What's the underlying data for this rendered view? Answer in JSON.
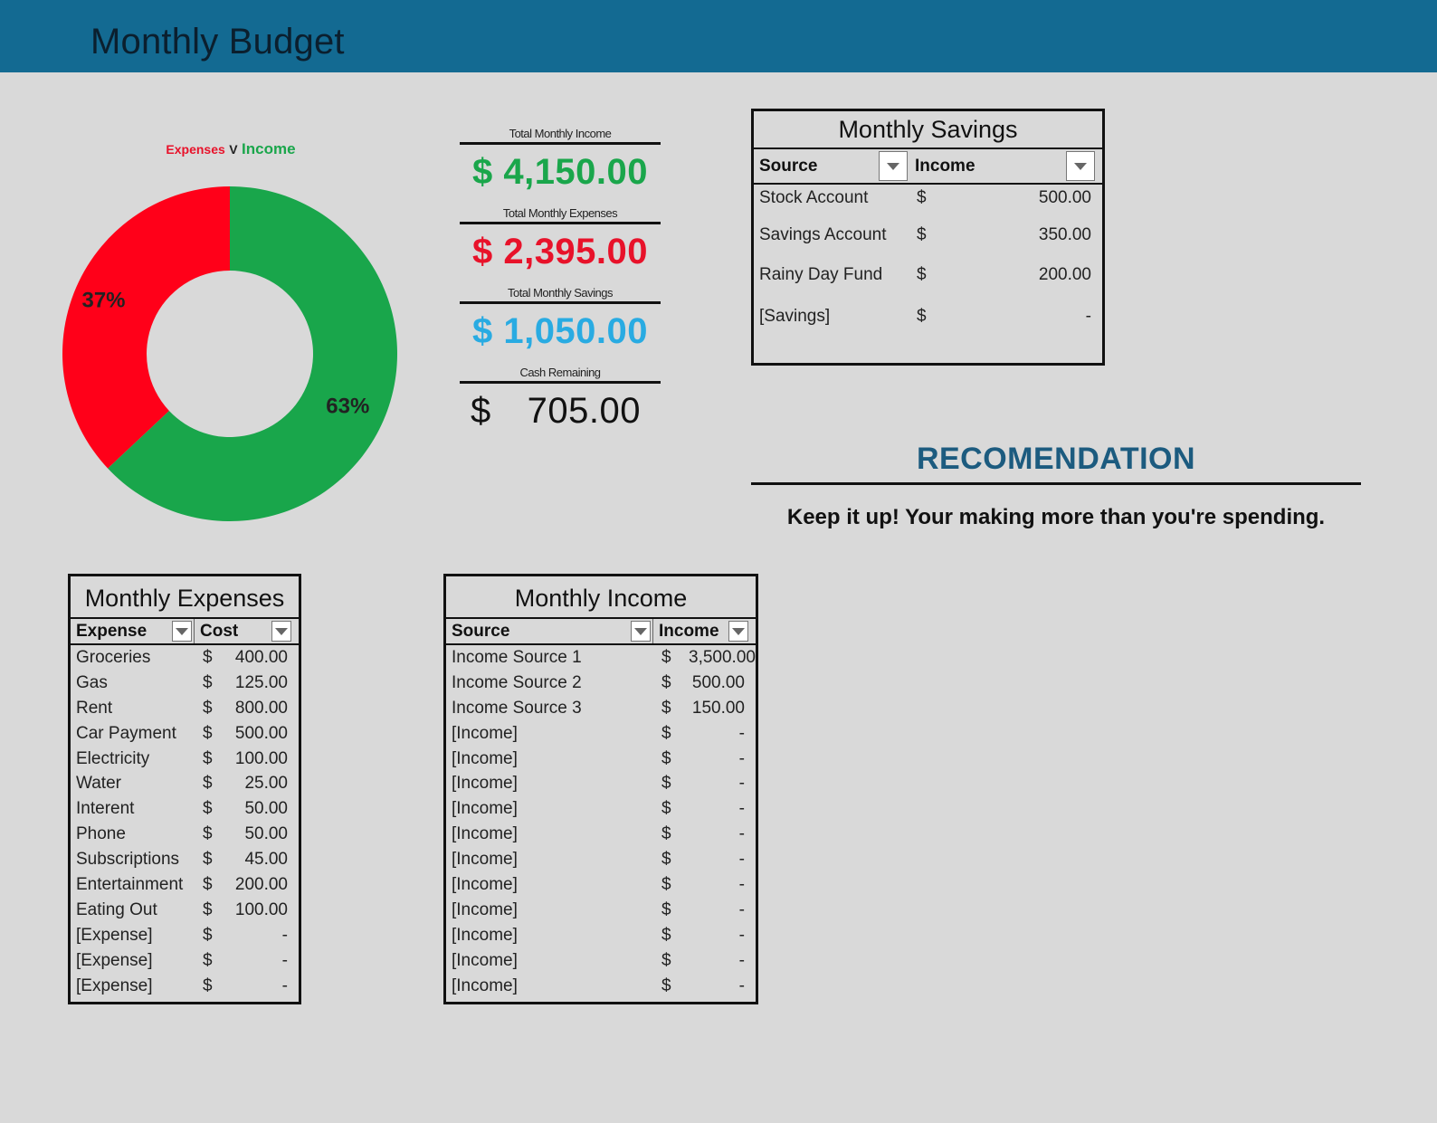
{
  "header": {
    "title": "Monthly Budget",
    "color": "#136a92"
  },
  "chart": {
    "title_expenses": "Expenses",
    "title_v": "V",
    "title_income": "Income",
    "colors": {
      "expenses": "#ff0019",
      "income": "#19a64b"
    }
  },
  "chart_data": {
    "type": "pie",
    "donut": true,
    "title": "Expenses V Income",
    "labels": [
      "Expenses",
      "Income"
    ],
    "values": [
      37,
      63
    ],
    "data_labels": [
      "37%",
      "63%"
    ],
    "legend": "none"
  },
  "summary": {
    "income_label": "Total Monthly Income",
    "income_value": "$ 4,150.00",
    "expenses_label": "Total Monthly Expenses",
    "expenses_value": "$ 2,395.00",
    "savings_label": "Total Monthly Savings",
    "savings_value": "$ 1,050.00",
    "cash_label": "Cash Remaining",
    "cash_currency": "$",
    "cash_value": "705.00"
  },
  "savings": {
    "title": "Monthly Savings",
    "col_source": "Source",
    "col_income": "Income",
    "rows": [
      {
        "source": "Stock Account",
        "cur": "$",
        "amount": "500.00"
      },
      {
        "source": "Savings Account",
        "cur": "$",
        "amount": "350.00"
      },
      {
        "source": "Rainy Day Fund",
        "cur": "$",
        "amount": "200.00"
      },
      {
        "source": "[Savings]",
        "cur": "$",
        "amount": "-"
      }
    ]
  },
  "recommendation": {
    "title": "RECOMENDATION",
    "text": "Keep it up! Your making more than you're spending."
  },
  "expenses": {
    "title": "Monthly Expenses",
    "col_expense": "Expense",
    "col_cost": "Cost",
    "rows": [
      {
        "name": "Groceries",
        "cur": "$",
        "amount": "400.00"
      },
      {
        "name": "Gas",
        "cur": "$",
        "amount": "125.00"
      },
      {
        "name": "Rent",
        "cur": "$",
        "amount": "800.00"
      },
      {
        "name": "Car Payment",
        "cur": "$",
        "amount": "500.00"
      },
      {
        "name": "Electricity",
        "cur": "$",
        "amount": "100.00"
      },
      {
        "name": "Water",
        "cur": "$",
        "amount": "25.00"
      },
      {
        "name": "Interent",
        "cur": "$",
        "amount": "50.00"
      },
      {
        "name": "Phone",
        "cur": "$",
        "amount": "50.00"
      },
      {
        "name": "Subscriptions",
        "cur": "$",
        "amount": "45.00"
      },
      {
        "name": "Entertainment",
        "cur": "$",
        "amount": "200.00"
      },
      {
        "name": "Eating Out",
        "cur": "$",
        "amount": "100.00"
      },
      {
        "name": "[Expense]",
        "cur": "$",
        "amount": "-"
      },
      {
        "name": "[Expense]",
        "cur": "$",
        "amount": "-"
      },
      {
        "name": "[Expense]",
        "cur": "$",
        "amount": "-"
      }
    ]
  },
  "income": {
    "title": "Monthly Income",
    "col_source": "Source",
    "col_income": "Income",
    "rows": [
      {
        "source": "Income Source 1",
        "cur": "$",
        "amount": "3,500.00"
      },
      {
        "source": "Income Source 2",
        "cur": "$",
        "amount": "500.00"
      },
      {
        "source": "Income Source 3",
        "cur": "$",
        "amount": "150.00"
      },
      {
        "source": "[Income]",
        "cur": "$",
        "amount": "-"
      },
      {
        "source": "[Income]",
        "cur": "$",
        "amount": "-"
      },
      {
        "source": "[Income]",
        "cur": "$",
        "amount": "-"
      },
      {
        "source": "[Income]",
        "cur": "$",
        "amount": "-"
      },
      {
        "source": "[Income]",
        "cur": "$",
        "amount": "-"
      },
      {
        "source": "[Income]",
        "cur": "$",
        "amount": "-"
      },
      {
        "source": "[Income]",
        "cur": "$",
        "amount": "-"
      },
      {
        "source": "[Income]",
        "cur": "$",
        "amount": "-"
      },
      {
        "source": "[Income]",
        "cur": "$",
        "amount": "-"
      },
      {
        "source": "[Income]",
        "cur": "$",
        "amount": "-"
      },
      {
        "source": "[Income]",
        "cur": "$",
        "amount": "-"
      }
    ]
  }
}
